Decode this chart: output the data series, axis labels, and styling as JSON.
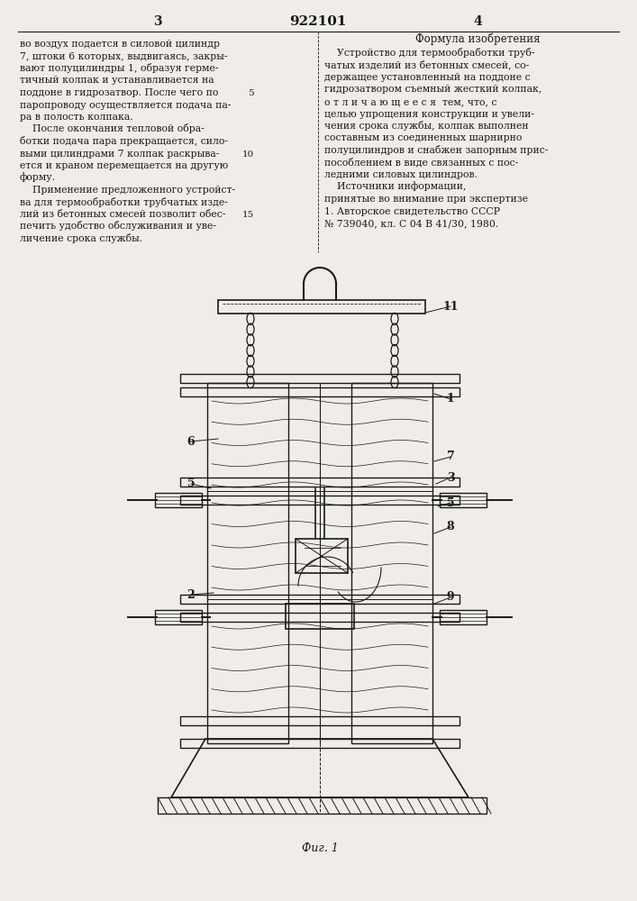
{
  "page_number_left": "3",
  "page_number_center": "922101",
  "page_number_right": "4",
  "left_column_text": [
    "во воздух подается в силовой цилиндр",
    "7, штоки 6 которых, выдвигаясь, закры-",
    "вают полуцилиндры 1, образуя герме-",
    "тичный колпак и устанавливается на",
    "поддоне в гидрозатвор. После чего по",
    "паропроводу осуществляется подача па-",
    "ра в полость колпака.",
    "    После окончания тепловой обра-",
    "ботки подача пара прекращается, сило-",
    "выми цилиндрами 7 колпак раскрыва-",
    "ется и краном перемещается на другую",
    "форму.",
    "    Применение предложенного устройст-",
    "ва для термообработки трубчатых изде-",
    "лий из бетонных смесей позволит обес-",
    "печить удобство обслуживания и уве-",
    "личение срока службы."
  ],
  "right_column_header": "Формула изобретения",
  "right_column_text": [
    "    Устройство для термообработки труб-",
    "чатых изделий из бетонных смесей, со-",
    "держащее установленный на поддоне с",
    "гидрозатвором съемный жесткий колпак,",
    "о т л и ч а ю щ е е с я  тем, что, с",
    "целью упрощения конструкции и увели-",
    "чения срока службы, колпак выполнен",
    "составным из соединенных шарнирно",
    "полуцилиндров и снабжен запорным прис-",
    "пособлением в виде связанных с пос-",
    "ледними силовых цилиндров.",
    "    Источники информации,",
    "принятые во внимание при экспертизе",
    "1. Авторское свидетельство СССР",
    "№ 739040, кл. С 04 В 41/30, 1980."
  ],
  "figure_label": "Фиг. 1",
  "bg_color": "#f0ede8",
  "text_color": "#1a1a1a",
  "line_color": "#1a1a1a"
}
